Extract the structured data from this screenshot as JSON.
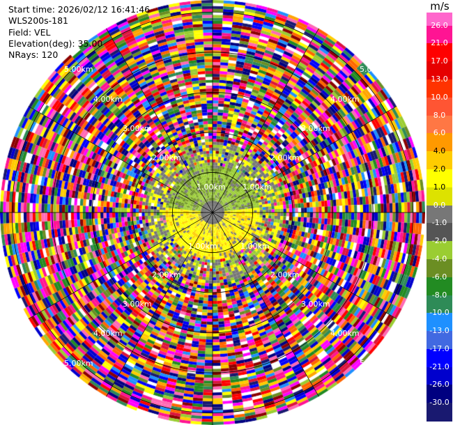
{
  "header": {
    "start_time": "Start time: 2026/02/12 16:41:46",
    "instrument": "WLS200s-181",
    "field": "Field: VEL",
    "elevation": "Elevation(deg): 35.00",
    "nrays": "NRays: 120"
  },
  "colorbar": {
    "unit": "m/s",
    "ticks": [
      "26.0",
      "21.0",
      "17.0",
      "13.0",
      "10.0",
      "8.0",
      "6.0",
      "4.0",
      "2.0",
      "1.0",
      "0.0",
      "-1.0",
      "-2.0",
      "-4.0",
      "-6.0",
      "-8.0",
      "-10.0",
      "-13.0",
      "-17.0",
      "-21.0",
      "-26.0",
      "-30.0"
    ],
    "colors": [
      "#ff1493",
      "#ff0000",
      "#e60000",
      "#ff3300",
      "#ff5533",
      "#ff7744",
      "#ff9900",
      "#ffcc00",
      "#ffff00",
      "#dde200",
      "#777777",
      "#555555",
      "#9acd32",
      "#6b8e23",
      "#228b22",
      "#2e8b57",
      "#1e90ff",
      "#4169e1",
      "#0000ff",
      "#0000cd",
      "#000080",
      "#191970"
    ],
    "colors_top": "#ff66cc"
  },
  "range_labels": {
    "r1": "1.00km",
    "r2": "2.00km",
    "r3": "3.00km",
    "r4": "4.00km",
    "r5": "5.00km"
  },
  "ppi": {
    "rings_km": [
      1,
      2,
      3,
      4,
      5
    ],
    "max_range_km": 5.3,
    "nrays": 120,
    "gates": 72
  }
}
